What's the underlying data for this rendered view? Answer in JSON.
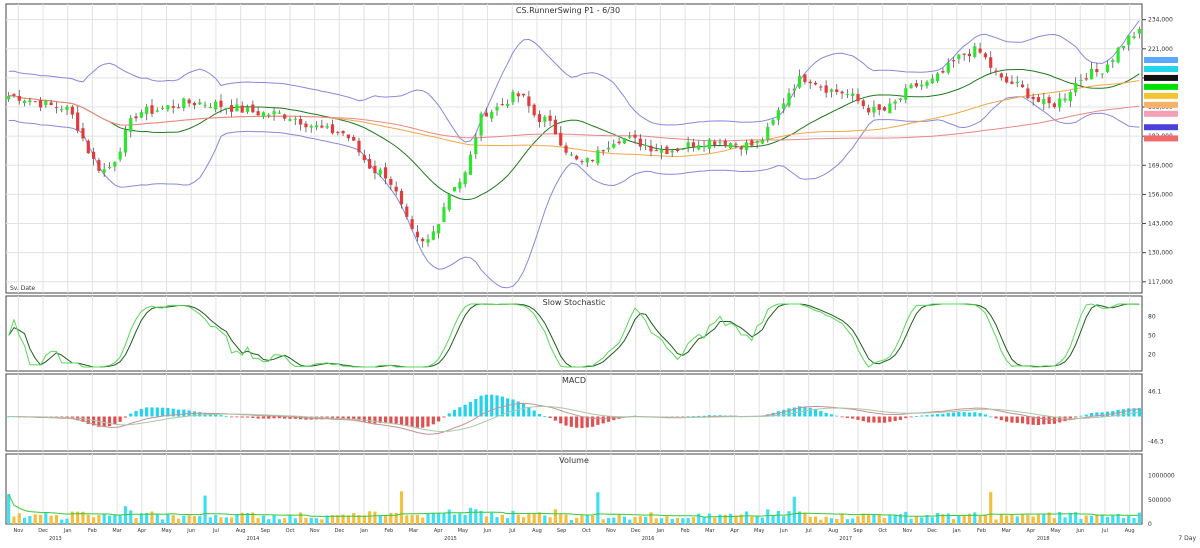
{
  "chart_data": [
    {
      "panel": "price",
      "type": "candlestick",
      "title": "CS.RunnerSwing  P1 - 6/30",
      "corner_label": "Sv. Date",
      "y_ticks": [
        234000,
        221000,
        208000,
        195000,
        182000,
        169000,
        156000,
        143000,
        130000,
        117000
      ],
      "y_tick_labels": [
        "234,000",
        "221,000",
        "208,000",
        "195,000",
        "182,000",
        "169,000",
        "156,000",
        "143,000",
        "130,000",
        "117,000"
      ],
      "ylim": [
        112000,
        241000
      ],
      "right_markers": [
        {
          "value": 216000,
          "color": "#5aa9ff"
        },
        {
          "value": 212000,
          "color": "#22d3ee"
        },
        {
          "value": 208000,
          "color": "#111111"
        },
        {
          "value": 204000,
          "color": "#00e000"
        },
        {
          "value": 200000,
          "color": "#f4c430"
        },
        {
          "value": 196000,
          "color": "#f7b267"
        },
        {
          "value": 192000,
          "color": "#f59fb5"
        },
        {
          "value": 186000,
          "color": "#4b3fd9"
        },
        {
          "value": 181000,
          "color": "#f06a6a"
        }
      ],
      "candles": [],
      "ma_colors": [
        "#1f7a1f",
        "#f0a848",
        "#e88888"
      ],
      "bollinger_color": "#8888dd"
    },
    {
      "panel": "stochastic",
      "type": "line",
      "title": "Slow  Stochastic",
      "y_tick_labels": [
        "80",
        "50",
        "20"
      ],
      "ylim": [
        0,
        100
      ],
      "series": [
        {
          "values": [],
          "color": "#1f5a1f"
        },
        {
          "values": [],
          "color": "#58d858"
        }
      ]
    },
    {
      "panel": "macd",
      "type": "histogram",
      "title": "MACD",
      "y_tick_labels": [
        "46.1",
        "-46.3"
      ],
      "ylim": [
        -60,
        60
      ],
      "hist_color": "#22d3ee",
      "line_colors": [
        "#c89090",
        "#a8c8a8",
        "#e05050"
      ]
    },
    {
      "panel": "volume",
      "type": "bar",
      "title": "Volume",
      "y_tick_labels": [
        "1000000",
        "500000",
        "0"
      ],
      "ylim": [
        0,
        1200000
      ],
      "up_color": "#3ee0f0",
      "down_color": "#f2c040",
      "avg_color": "#38c838"
    }
  ],
  "x_axis": {
    "dates": [
      "Nov",
      "Dec",
      "Jan",
      "Feb",
      "Mar",
      "Apr",
      "May",
      "Jun",
      "Jul",
      "Aug",
      "Sep",
      "Oct",
      "Nov",
      "Dec",
      "Jan",
      "Feb",
      "Mar",
      "Apr",
      "May",
      "Jun",
      "Jul",
      "Aug",
      "Sep",
      "Oct",
      "Nov",
      "Dec",
      "Jan",
      "Feb",
      "Mar",
      "Apr",
      "May",
      "Jun",
      "Jul",
      "Aug",
      "Sep",
      "Oct",
      "Nov",
      "Dec",
      "Jan",
      "Feb",
      "Mar",
      "Apr",
      "May",
      "Jun",
      "Jul",
      "Aug"
    ],
    "years": [
      "2013",
      "2014",
      "2015",
      "2016",
      "2017",
      "2018"
    ],
    "end_label": "7 Day"
  }
}
